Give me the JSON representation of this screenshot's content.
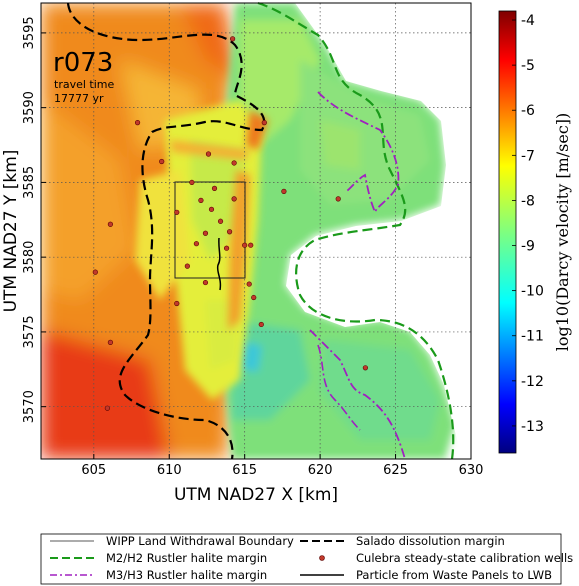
{
  "map": {
    "run_id": "r073",
    "travel_time_label": "travel time",
    "travel_time_value": "17777 yr",
    "xlabel": "UTM NAD27 X [km]",
    "ylabel": "UTM NAD27 Y [km]",
    "x_ticks": [
      "605",
      "610",
      "615",
      "620",
      "625",
      "630"
    ],
    "y_ticks": [
      "3570",
      "3575",
      "3580",
      "3585",
      "3590",
      "3595"
    ],
    "xlim": [
      601.5,
      630
    ],
    "ylim": [
      3566.5,
      3597
    ],
    "grid": true
  },
  "colorbar": {
    "label": "log10(Darcy velocity [m/sec])",
    "ticks": [
      "-4",
      "-5",
      "-6",
      "-7",
      "-8",
      "-9",
      "-10",
      "-11",
      "-12",
      "-13"
    ],
    "range": [
      -13.6,
      -3.8
    ],
    "colormap": "jet"
  },
  "legend": {
    "items": [
      {
        "label": "WIPP Land Withdrawal Boundary",
        "style": "thin-solid",
        "color": "#222222"
      },
      {
        "label": "Salado dissolution margin",
        "style": "black-dashed",
        "color": "#000000"
      },
      {
        "label": "M2/H2 Rustler halite margin",
        "style": "green-dashed",
        "color": "#1a9a1a"
      },
      {
        "label": "Culebra steady-state calibration wells",
        "style": "red-dot",
        "color": "#c0392b"
      },
      {
        "label": "M3/H3 Rustler halite margin",
        "style": "purple-dashdot",
        "color": "#a020c0"
      },
      {
        "label": "Particle from Waste Panels to LWB",
        "style": "black-solid",
        "color": "#000000"
      }
    ]
  },
  "wells": [
    [
      614.2,
      3594.6
    ],
    [
      607.9,
      3589.0
    ],
    [
      612.6,
      3586.9
    ],
    [
      614.3,
      3586.3
    ],
    [
      609.5,
      3586.4
    ],
    [
      616.3,
      3589.0
    ],
    [
      611.5,
      3585.0
    ],
    [
      613.0,
      3584.6
    ],
    [
      612.1,
      3583.8
    ],
    [
      614.3,
      3583.9
    ],
    [
      610.5,
      3583.0
    ],
    [
      612.8,
      3583.2
    ],
    [
      613.4,
      3582.4
    ],
    [
      612.4,
      3581.6
    ],
    [
      614.0,
      3581.7
    ],
    [
      611.8,
      3580.9
    ],
    [
      613.8,
      3580.6
    ],
    [
      615.0,
      3580.8
    ],
    [
      615.4,
      3580.8
    ],
    [
      611.2,
      3579.4
    ],
    [
      606.1,
      3582.2
    ],
    [
      605.1,
      3579.0
    ],
    [
      610.5,
      3576.9
    ],
    [
      612.4,
      3578.3
    ],
    [
      615.3,
      3578.2
    ],
    [
      615.6,
      3577.3
    ],
    [
      616.1,
      3575.5
    ],
    [
      617.6,
      3584.4
    ],
    [
      621.2,
      3583.9
    ],
    [
      623.0,
      3572.6
    ],
    [
      606.1,
      3574.3
    ],
    [
      605.9,
      3569.9
    ]
  ]
}
